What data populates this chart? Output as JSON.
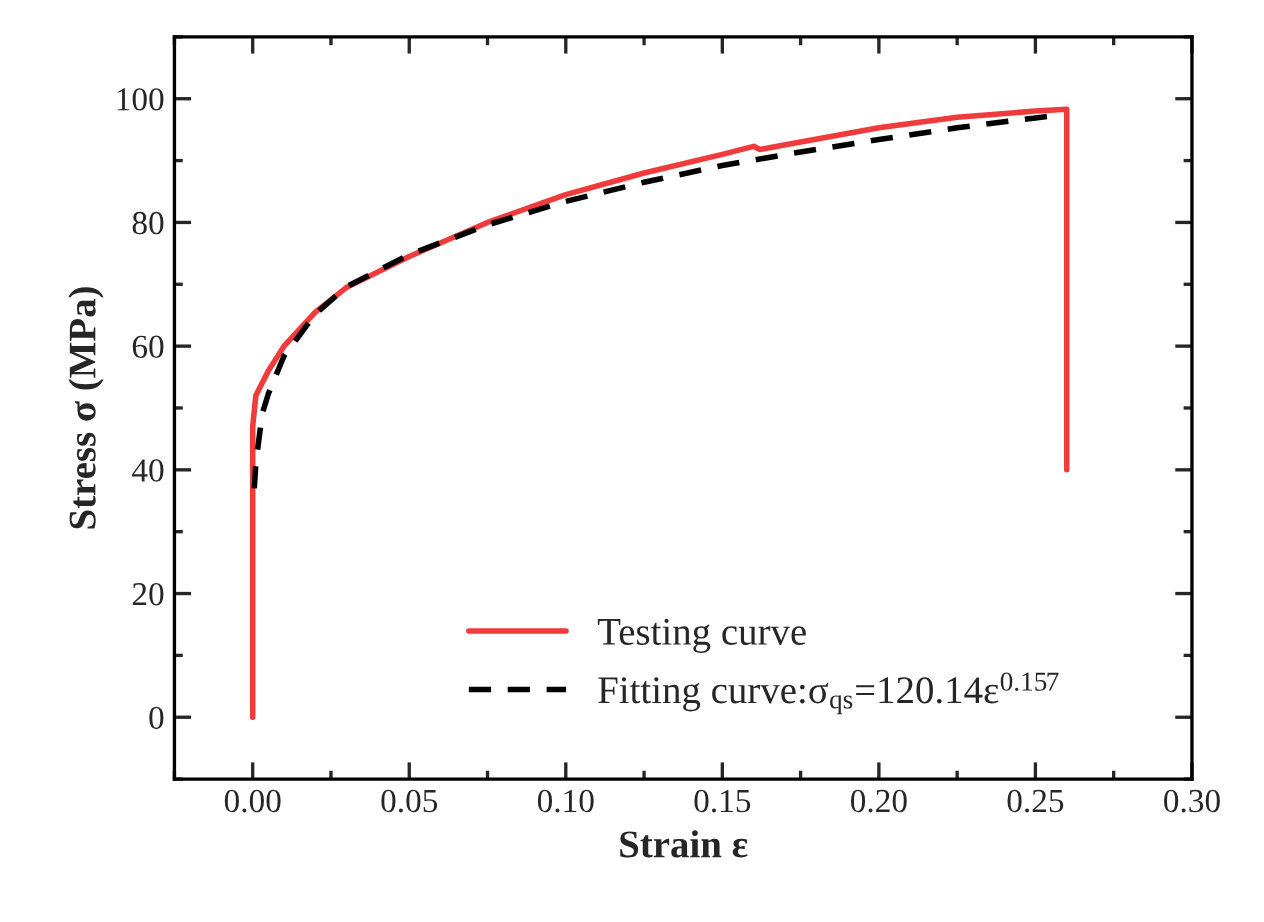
{
  "chart_data": {
    "type": "line",
    "xlabel": "Strain ε",
    "ylabel": "Stress σ (MPa)",
    "xlim": [
      -0.025,
      0.3
    ],
    "xticks": [
      {
        "value": 0,
        "label": "0.00"
      },
      0.05,
      {
        "value": 0.1,
        "label": "0.10"
      },
      0.15,
      {
        "value": 0.2,
        "label": "0.20"
      },
      0.25,
      {
        "value": 0.3,
        "label": "0.30"
      }
    ],
    "ylim": [
      -10,
      110
    ],
    "yticks": [
      0,
      20,
      40,
      60,
      80,
      100
    ],
    "grid": false,
    "legend": "bottom",
    "series": [
      {
        "name": "Testing curve",
        "color": "#ef3b3b",
        "line_style": "solid",
        "x": [
          0,
          0,
          0.001,
          0.005,
          0.01,
          0.02,
          0.03,
          0.05,
          0.075,
          0.1,
          0.125,
          0.15,
          0.16,
          0.162,
          0.175,
          0.2,
          0.225,
          0.25,
          0.26,
          0.26
        ],
        "values": [
          0,
          47,
          52,
          56,
          60,
          65.5,
          69.5,
          74.5,
          80,
          84.5,
          88,
          91,
          92.3,
          91.8,
          93,
          95.3,
          97,
          98,
          98.3,
          40
        ]
      },
      {
        "name": "Fitting curve:σ$_{qs}$=120.14ε$^{0.157}$",
        "color": "#000000",
        "line_style": "dashed",
        "x": [
          0.0005,
          0.001,
          0.003,
          0.005,
          0.01,
          0.02,
          0.03,
          0.05,
          0.075,
          0.1,
          0.125,
          0.15,
          0.175,
          0.2,
          0.225,
          0.25,
          0.255
        ],
        "values": [
          37,
          41,
          49,
          52.3,
          58.4,
          65.2,
          69.6,
          74.8,
          79.6,
          83.4,
          86.5,
          89.2,
          91.4,
          93.4,
          95.3,
          96.9,
          97.2
        ]
      }
    ]
  }
}
